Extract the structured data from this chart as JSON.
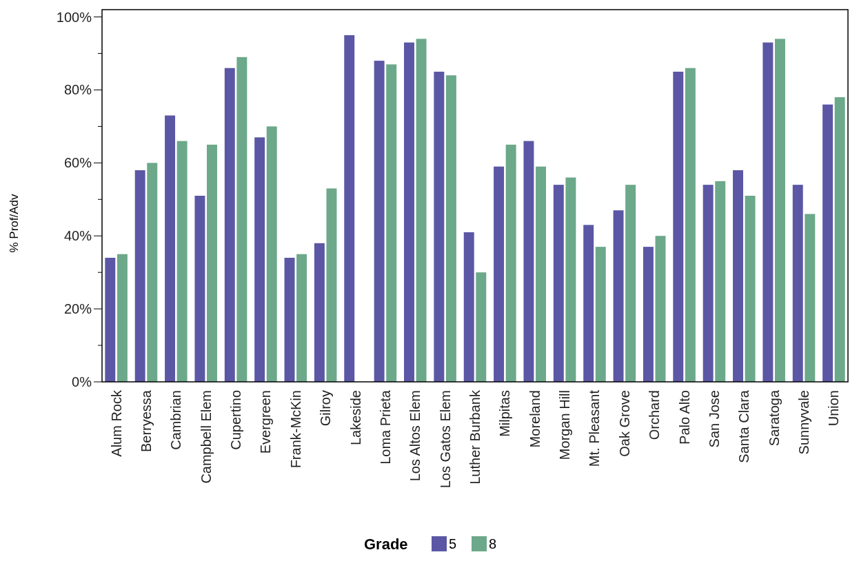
{
  "chart_data": {
    "type": "bar",
    "ylabel": "% Prof/Adv",
    "legend_title": "Grade",
    "legend": "bottom",
    "categories": [
      "Alum Rock",
      "Berryessa",
      "Cambrian",
      "Campbell Elem",
      "Cupertino",
      "Evergreen",
      "Frank-McKin",
      "Gilroy",
      "Lakeside",
      "Loma Prieta",
      "Los Altos Elem",
      "Los Gatos Elem",
      "Luther Burbank",
      "Milpitas",
      "Moreland",
      "Morgan Hill",
      "Mt. Pleasant",
      "Oak Grove",
      "Orchard",
      "Palo Alto",
      "San Jose",
      "Santa Clara",
      "Saratoga",
      "Sunnyvale",
      "Union"
    ],
    "series": [
      {
        "name": "5",
        "color": "#5b57a5",
        "values": [
          34,
          58,
          73,
          51,
          86,
          67,
          34,
          38,
          95,
          88,
          93,
          85,
          41,
          59,
          66,
          54,
          43,
          47,
          37,
          85,
          54,
          58,
          93,
          54,
          76
        ]
      },
      {
        "name": "8",
        "color": "#6ca88a",
        "values": [
          35,
          60,
          66,
          65,
          89,
          70,
          35,
          53,
          null,
          87,
          94,
          84,
          30,
          65,
          59,
          56,
          37,
          54,
          40,
          86,
          55,
          51,
          94,
          46,
          78
        ]
      }
    ],
    "ylim": [
      0,
      102
    ],
    "yticks": [
      {
        "value": 0,
        "label": "0%"
      },
      {
        "value": 10,
        "label": null
      },
      {
        "value": 20,
        "label": "20%"
      },
      {
        "value": 30,
        "label": null
      },
      {
        "value": 40,
        "label": "40%"
      },
      {
        "value": 50,
        "label": null
      },
      {
        "value": 60,
        "label": "60%"
      },
      {
        "value": 70,
        "label": null
      },
      {
        "value": 80,
        "label": "80%"
      },
      {
        "value": 90,
        "label": null
      },
      {
        "value": 100,
        "label": "100%"
      }
    ],
    "grid": false
  }
}
